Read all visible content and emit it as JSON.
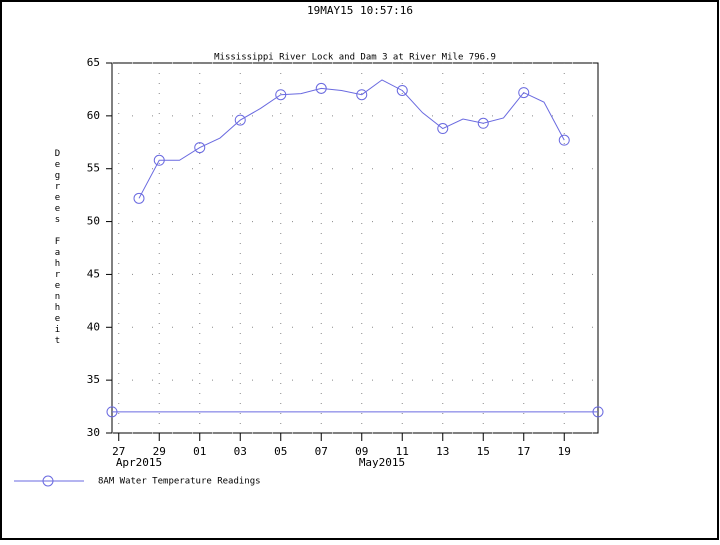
{
  "chart_data": {
    "type": "line",
    "timestamp": "19MAY15  10:57:16",
    "title": "Mississippi River Lock and Dam 3 at River Mile 796.9",
    "ylabel": "Degrees Fahrenheit",
    "x": [
      "2015-04-28",
      "2015-04-29",
      "2015-04-30",
      "2015-05-01",
      "2015-05-02",
      "2015-05-03",
      "2015-05-04",
      "2015-05-05",
      "2015-05-06",
      "2015-05-07",
      "2015-05-08",
      "2015-05-09",
      "2015-05-10",
      "2015-05-11",
      "2015-05-12",
      "2015-05-13",
      "2015-05-14",
      "2015-05-15",
      "2015-05-16",
      "2015-05-17",
      "2015-05-18",
      "2015-05-19"
    ],
    "series": [
      {
        "name": "8AM Water Temperature Readings",
        "color": "#6a6ae0",
        "values": [
          52.2,
          55.8,
          55.8,
          57.0,
          57.9,
          59.6,
          60.7,
          62.0,
          62.1,
          62.6,
          62.4,
          62.0,
          63.4,
          62.4,
          60.3,
          58.8,
          59.7,
          59.3,
          59.8,
          62.2,
          61.3,
          57.7
        ]
      }
    ],
    "reference_line": {
      "value": 32,
      "color": "#6a6ae0"
    },
    "xlim": [
      "2015-04-26T16:00",
      "2015-05-20T16:00"
    ],
    "xticks": [
      {
        "value": "2015-04-27",
        "label": "27"
      },
      {
        "value": "2015-04-29",
        "label": "29"
      },
      {
        "value": "2015-05-01",
        "label": "01"
      },
      {
        "value": "2015-05-03",
        "label": "03"
      },
      {
        "value": "2015-05-05",
        "label": "05"
      },
      {
        "value": "2015-05-07",
        "label": "07"
      },
      {
        "value": "2015-05-09",
        "label": "09"
      },
      {
        "value": "2015-05-11",
        "label": "11"
      },
      {
        "value": "2015-05-13",
        "label": "13"
      },
      {
        "value": "2015-05-15",
        "label": "15"
      },
      {
        "value": "2015-05-17",
        "label": "17"
      },
      {
        "value": "2015-05-19",
        "label": "19"
      }
    ],
    "month_labels": [
      {
        "value": "2015-04-28",
        "label": "Apr2015"
      },
      {
        "value": "2015-05-10",
        "label": "May2015"
      }
    ],
    "ylim": [
      30,
      65
    ],
    "yticks": [
      30,
      35,
      40,
      45,
      50,
      55,
      60,
      65
    ],
    "grid": true
  }
}
